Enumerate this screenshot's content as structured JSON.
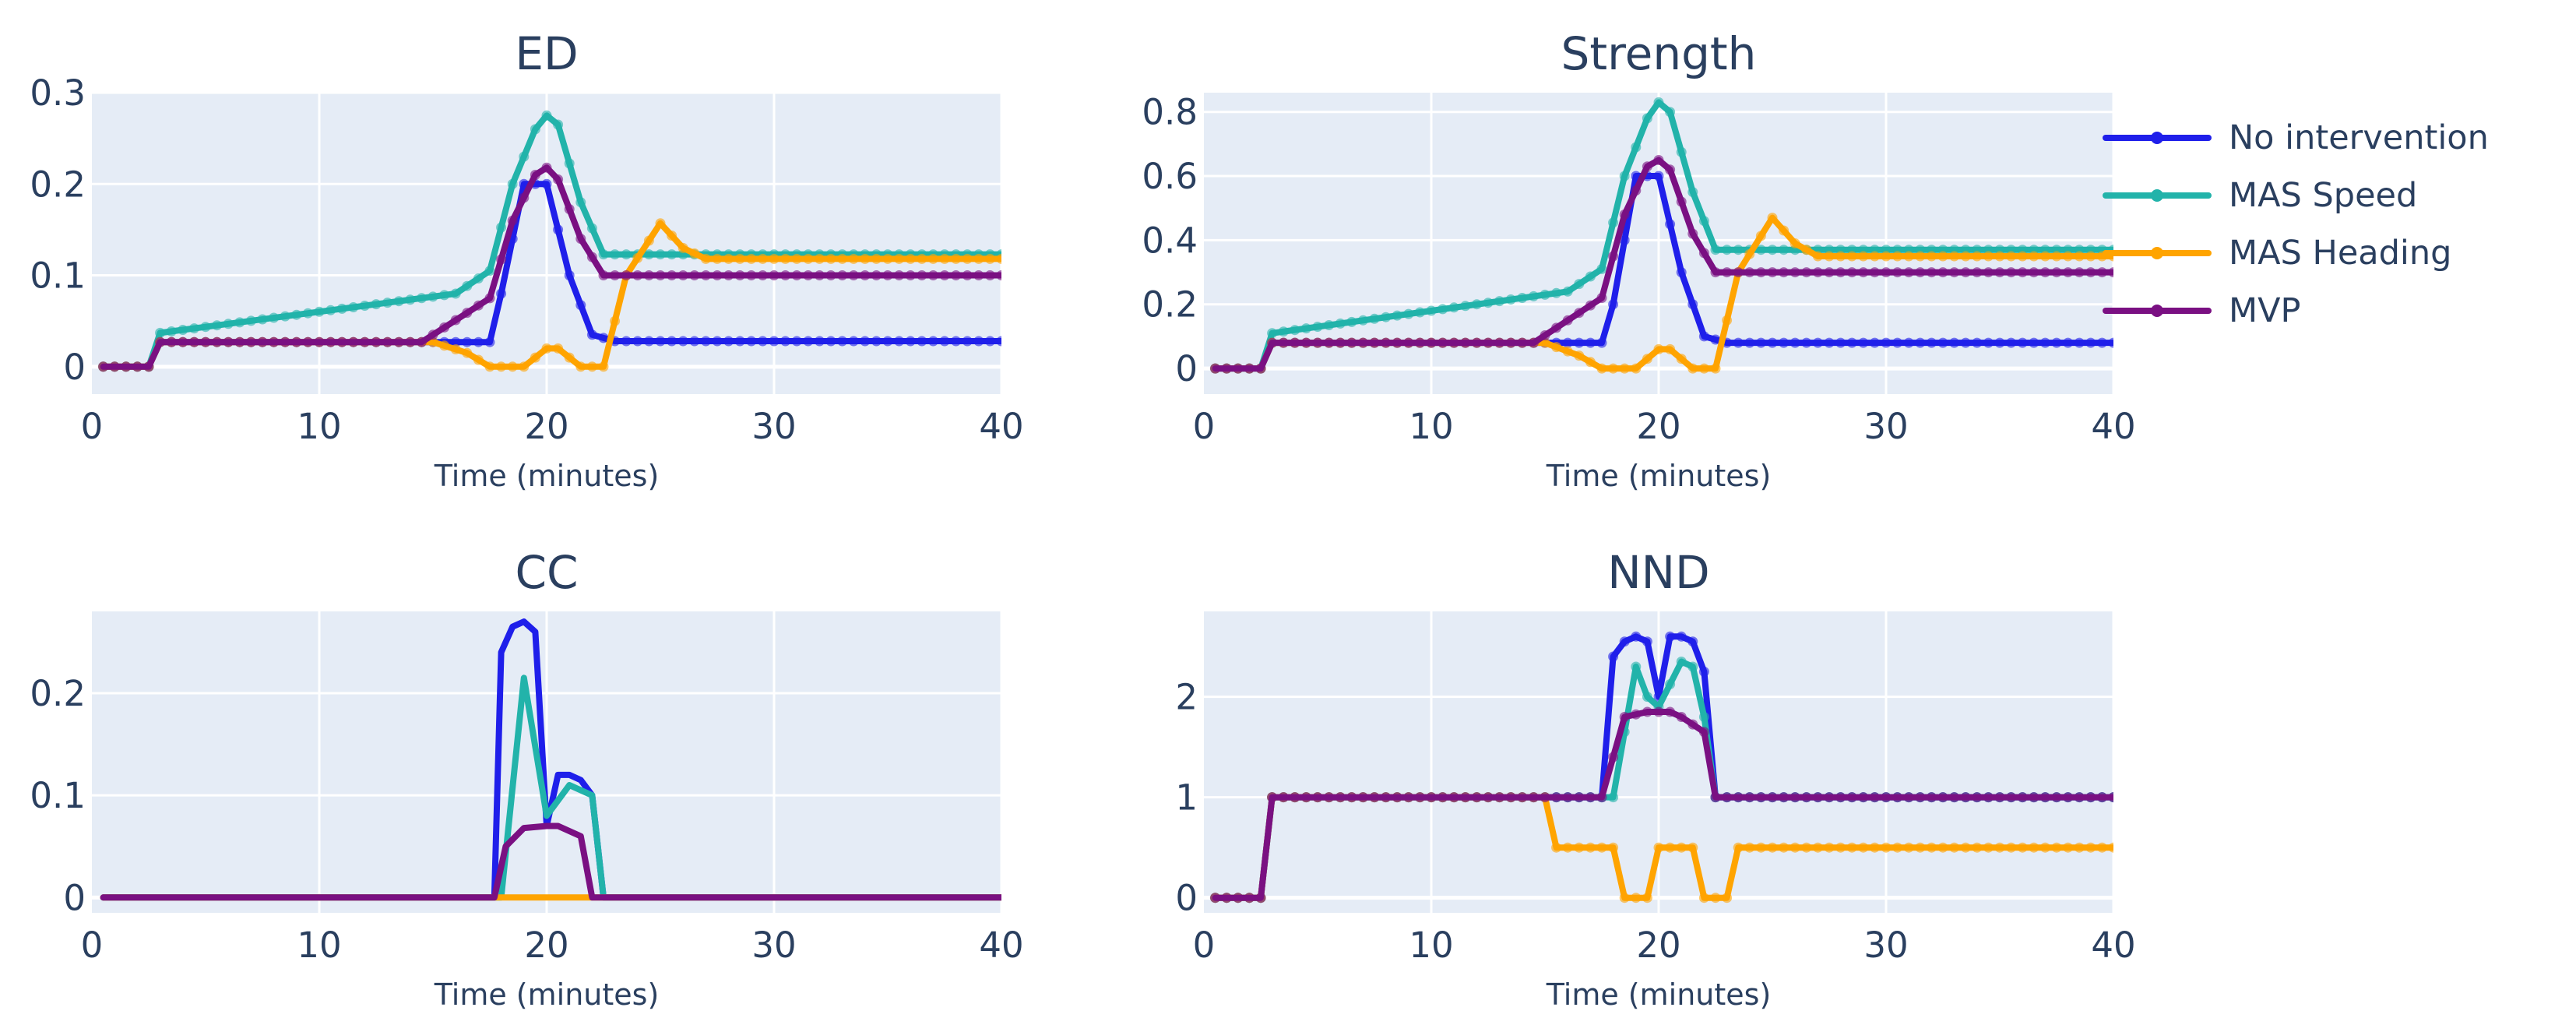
{
  "colors": {
    "No intervention": "#1f1fea",
    "MAS Speed": "#22b3aa",
    "MAS Heading": "#ffa400",
    "MVP": "#7a1082",
    "plot_bg": "#e5ecf6",
    "text": "#2a3f5f"
  },
  "legend": {
    "items": [
      "No intervention",
      "MAS Speed",
      "MAS Heading",
      "MVP"
    ]
  },
  "chart_data": [
    {
      "type": "line",
      "title": "ED",
      "xlabel": "Time (minutes)",
      "ylabel": "",
      "xlim": [
        0,
        40
      ],
      "ylim": [
        -0.03,
        0.3
      ],
      "xticks": [
        0,
        10,
        20,
        30,
        40
      ],
      "yticks": [
        0,
        0.1,
        0.2,
        0.3
      ],
      "ytick_labels": [
        "0",
        "0.1",
        "0.2",
        "0.3"
      ],
      "series": [
        {
          "name": "No intervention",
          "markers": true,
          "x": [
            0.5,
            2.5,
            3,
            15,
            16.5,
            17.5,
            18,
            19,
            20,
            21,
            22,
            23,
            40
          ],
          "y": [
            0,
            0,
            0.027,
            0.027,
            0.027,
            0.027,
            0.08,
            0.2,
            0.2,
            0.1,
            0.035,
            0.028,
            0.028
          ]
        },
        {
          "name": "MAS Speed",
          "markers": true,
          "x": [
            0.5,
            2.5,
            3,
            16,
            17.5,
            18.5,
            19.5,
            20,
            20.5,
            21.5,
            22.5,
            40
          ],
          "y": [
            0,
            0,
            0.037,
            0.08,
            0.105,
            0.2,
            0.26,
            0.275,
            0.265,
            0.18,
            0.123,
            0.123
          ]
        },
        {
          "name": "MAS Heading",
          "markers": true,
          "x": [
            0.5,
            2.5,
            3,
            15,
            16.5,
            17.5,
            19,
            20,
            20.5,
            21.5,
            22.5,
            23.5,
            25,
            26,
            27,
            40
          ],
          "y": [
            0,
            0,
            0.027,
            0.027,
            0.015,
            0,
            0,
            0.02,
            0.02,
            0,
            0,
            0.1,
            0.157,
            0.13,
            0.118,
            0.118
          ]
        },
        {
          "name": "MVP",
          "markers": true,
          "x": [
            0.5,
            2.5,
            3,
            14.5,
            17.5,
            18.5,
            19.5,
            20,
            20.5,
            21.5,
            22.5,
            40
          ],
          "y": [
            0,
            0,
            0.027,
            0.027,
            0.075,
            0.16,
            0.21,
            0.218,
            0.205,
            0.14,
            0.1,
            0.1
          ]
        }
      ]
    },
    {
      "type": "line",
      "title": "Strength",
      "xlabel": "Time (minutes)",
      "ylabel": "",
      "xlim": [
        0,
        40
      ],
      "ylim": [
        -0.08,
        0.86
      ],
      "xticks": [
        0,
        10,
        20,
        30,
        40
      ],
      "yticks": [
        0,
        0.2,
        0.4,
        0.6,
        0.8
      ],
      "ytick_labels": [
        "0",
        "0.2",
        "0.4",
        "0.6",
        "0.8"
      ],
      "series": [
        {
          "name": "No intervention",
          "markers": true,
          "x": [
            0.5,
            2.5,
            3,
            15,
            16.5,
            17.5,
            18,
            19,
            20,
            21,
            22,
            23,
            40
          ],
          "y": [
            0,
            0,
            0.08,
            0.08,
            0.08,
            0.08,
            0.2,
            0.6,
            0.6,
            0.3,
            0.1,
            0.08,
            0.08
          ]
        },
        {
          "name": "MAS Speed",
          "markers": true,
          "x": [
            0.5,
            2.5,
            3,
            16,
            17.5,
            18.5,
            19.5,
            20,
            20.5,
            21.5,
            22.5,
            40
          ],
          "y": [
            0,
            0,
            0.11,
            0.24,
            0.31,
            0.6,
            0.78,
            0.83,
            0.8,
            0.55,
            0.37,
            0.37
          ]
        },
        {
          "name": "MAS Heading",
          "markers": true,
          "x": [
            0.5,
            2.5,
            3,
            15,
            16.5,
            17.5,
            19,
            20,
            20.5,
            21.5,
            22.5,
            23.5,
            25,
            26,
            27,
            40
          ],
          "y": [
            0,
            0,
            0.08,
            0.08,
            0.04,
            0,
            0,
            0.06,
            0.06,
            0,
            0,
            0.3,
            0.47,
            0.39,
            0.35,
            0.35
          ]
        },
        {
          "name": "MVP",
          "markers": true,
          "x": [
            0.5,
            2.5,
            3,
            14.5,
            17.5,
            18.5,
            19.5,
            20,
            20.5,
            21.5,
            22.5,
            40
          ],
          "y": [
            0,
            0,
            0.08,
            0.08,
            0.22,
            0.48,
            0.63,
            0.65,
            0.62,
            0.42,
            0.3,
            0.3
          ]
        }
      ]
    },
    {
      "type": "line",
      "title": "CC",
      "xlabel": "Time (minutes)",
      "ylabel": "",
      "xlim": [
        0,
        40
      ],
      "ylim": [
        -0.015,
        0.28
      ],
      "xticks": [
        0,
        10,
        20,
        30,
        40
      ],
      "yticks": [
        0,
        0.1,
        0.2
      ],
      "ytick_labels": [
        "0",
        "0.1",
        "0.2"
      ],
      "series": [
        {
          "name": "No intervention",
          "markers": false,
          "x": [
            0.5,
            17.7,
            18,
            18.5,
            19,
            19.5,
            20,
            20.5,
            21,
            21.5,
            22,
            22.5,
            40
          ],
          "y": [
            0,
            0,
            0.24,
            0.265,
            0.27,
            0.26,
            0.07,
            0.12,
            0.12,
            0.115,
            0.1,
            0,
            0
          ]
        },
        {
          "name": "MAS Speed",
          "markers": false,
          "x": [
            0.5,
            18,
            19,
            20,
            21,
            22,
            22.5,
            40
          ],
          "y": [
            0,
            0,
            0.215,
            0.08,
            0.11,
            0.1,
            0,
            0
          ]
        },
        {
          "name": "MAS Heading",
          "markers": false,
          "x": [
            0.5,
            40
          ],
          "y": [
            0,
            0
          ]
        },
        {
          "name": "MVP",
          "markers": false,
          "x": [
            0.5,
            17.7,
            18.2,
            19,
            20,
            20.5,
            21.5,
            22,
            40
          ],
          "y": [
            0,
            0,
            0.05,
            0.068,
            0.07,
            0.07,
            0.06,
            0,
            0
          ]
        }
      ]
    },
    {
      "type": "line",
      "title": "NND",
      "xlabel": "Time (minutes)",
      "ylabel": "",
      "xlim": [
        0,
        40
      ],
      "ylim": [
        -0.15,
        2.85
      ],
      "xticks": [
        0,
        10,
        20,
        30,
        40
      ],
      "yticks": [
        0,
        1,
        2
      ],
      "ytick_labels": [
        "0",
        "1",
        "2"
      ],
      "series": [
        {
          "name": "No intervention",
          "markers": true,
          "x": [
            0.5,
            2.5,
            3,
            17.5,
            18,
            18.5,
            19,
            19.5,
            20,
            20.5,
            21,
            21.5,
            22,
            22.5,
            40
          ],
          "y": [
            0,
            0,
            1,
            1,
            2.4,
            2.55,
            2.6,
            2.55,
            2.0,
            2.6,
            2.6,
            2.55,
            2.25,
            1,
            1
          ]
        },
        {
          "name": "MAS Speed",
          "markers": true,
          "x": [
            0.5,
            2.5,
            3,
            18,
            19,
            19.5,
            20,
            21,
            21.5,
            22,
            22.5,
            40
          ],
          "y": [
            0,
            0,
            1,
            1,
            2.3,
            2.0,
            1.9,
            2.35,
            2.3,
            1.8,
            1,
            1
          ]
        },
        {
          "name": "MAS Heading",
          "markers": true,
          "x": [
            0.5,
            2.5,
            3,
            15,
            15.5,
            18,
            18.5,
            19.5,
            20,
            21.5,
            22,
            23,
            23.5,
            40
          ],
          "y": [
            0,
            0,
            1,
            1,
            0.5,
            0.5,
            0,
            0,
            0.5,
            0.5,
            0,
            0,
            0.5,
            0.5
          ]
        },
        {
          "name": "MVP",
          "markers": true,
          "x": [
            0.5,
            2.5,
            3,
            17.5,
            18.5,
            19.5,
            20.5,
            21,
            22,
            22.5,
            40
          ],
          "y": [
            0,
            0,
            1,
            1,
            1.8,
            1.85,
            1.85,
            1.8,
            1.65,
            1,
            1
          ]
        }
      ]
    }
  ]
}
